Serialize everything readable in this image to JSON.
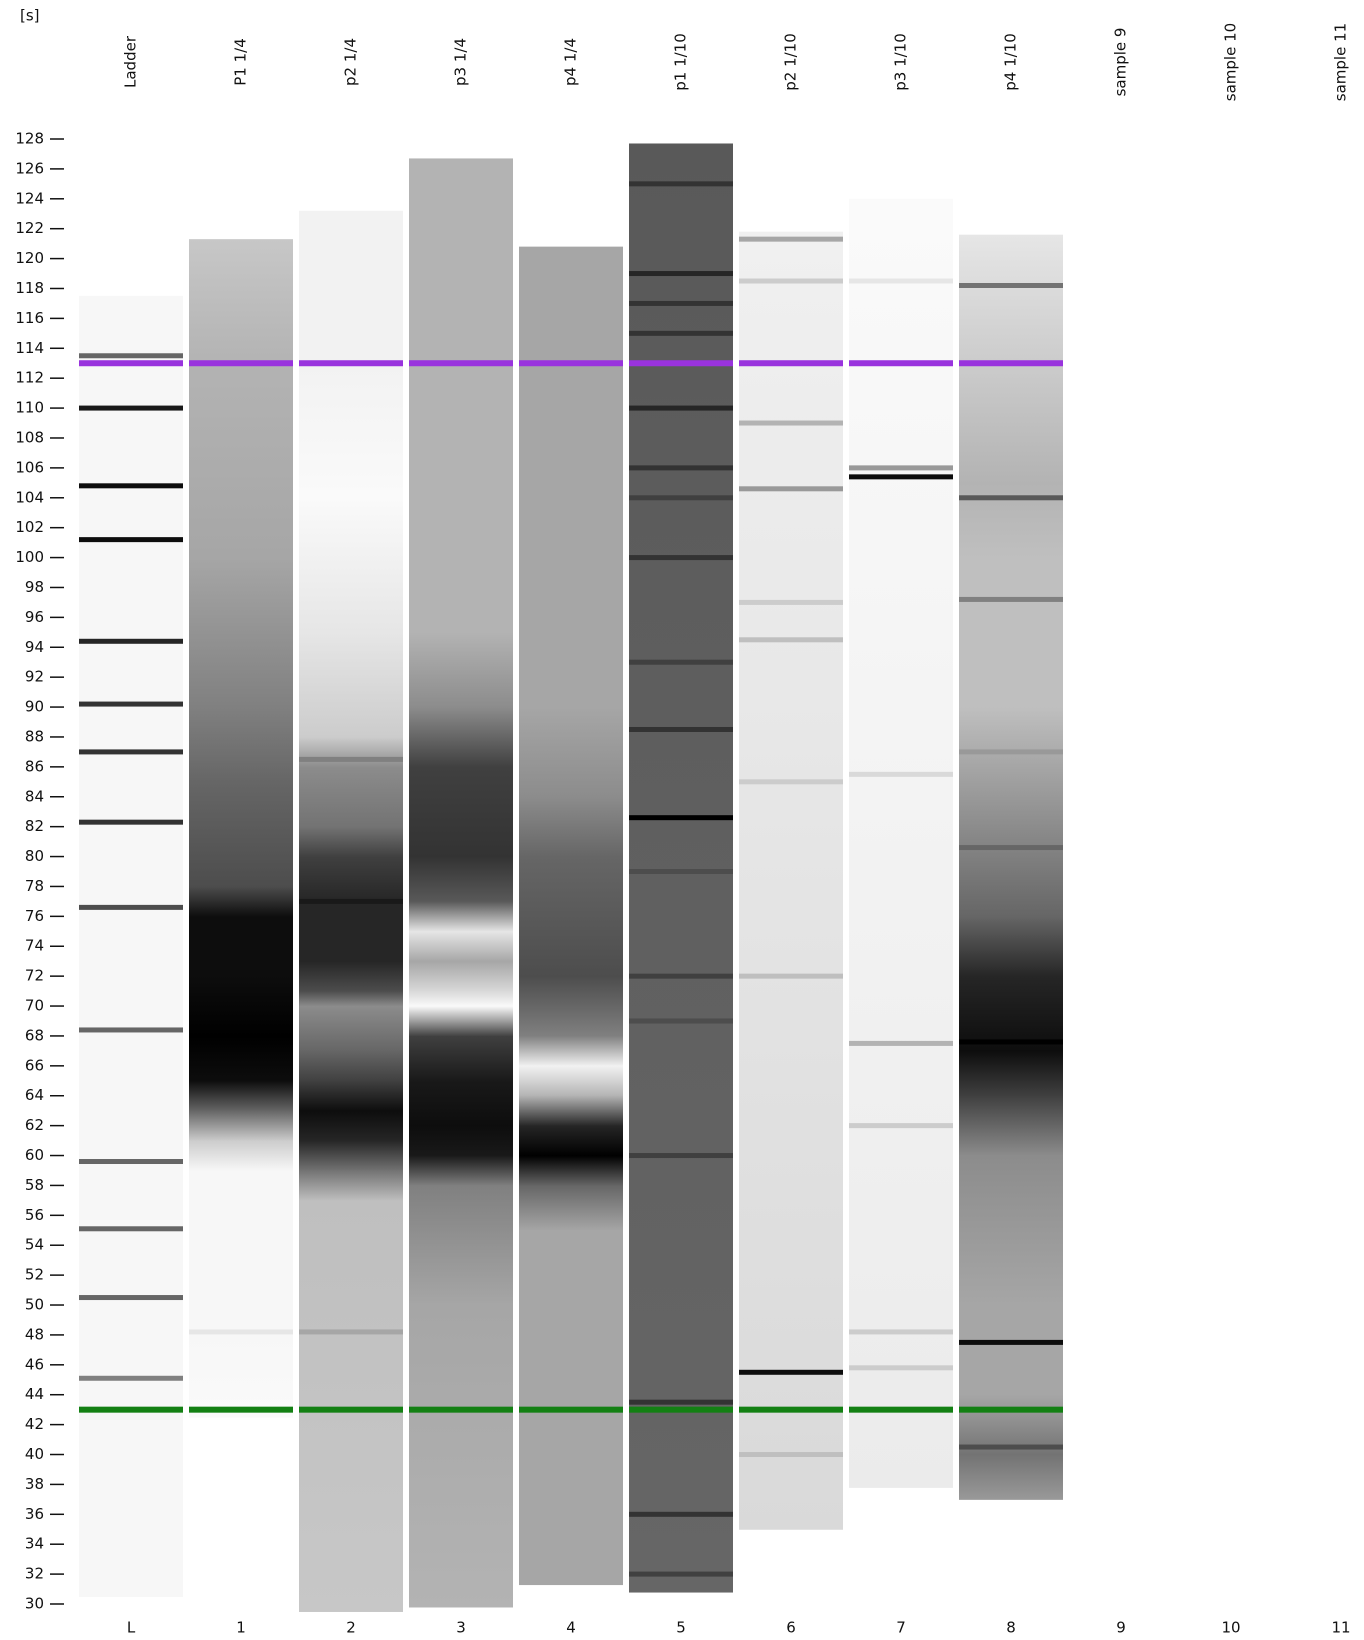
{
  "chart_data": {
    "type": "gel",
    "y_label": "[s]",
    "ylim": [
      30,
      128
    ],
    "yticks": [
      30,
      32,
      34,
      36,
      38,
      40,
      42,
      44,
      46,
      48,
      50,
      52,
      54,
      56,
      58,
      60,
      62,
      64,
      66,
      68,
      70,
      72,
      74,
      76,
      78,
      80,
      82,
      84,
      86,
      88,
      90,
      92,
      94,
      96,
      98,
      100,
      102,
      104,
      106,
      108,
      110,
      112,
      114,
      116,
      118,
      120,
      122,
      124,
      126,
      128
    ],
    "upper_marker": {
      "value": 113,
      "color": "#9933dd"
    },
    "lower_marker": {
      "value": 43,
      "color": "#138013"
    },
    "lanes": [
      {
        "name": "Ladder",
        "number": "L",
        "profile": {
          "positions": [
            117.5,
            30.5
          ],
          "intensities": [
            0.03,
            0.03
          ]
        },
        "bands": {
          "positions": [
            113.5,
            110,
            104.8,
            101.2,
            94.4,
            90.2,
            87,
            82.3,
            76.6,
            68.4,
            59.6,
            55.1,
            50.5,
            45.1
          ],
          "intensities": [
            0.6,
            0.9,
            0.95,
            0.95,
            0.85,
            0.8,
            0.8,
            0.8,
            0.7,
            0.6,
            0.6,
            0.6,
            0.6,
            0.5
          ]
        }
      },
      {
        "name": "P1 1/4",
        "number": 1,
        "profile": {
          "positions": [
            121.3,
            113,
            100,
            90,
            85,
            78,
            76,
            72,
            68,
            65,
            63,
            61,
            59,
            48,
            42.5
          ],
          "intensities": [
            0.22,
            0.3,
            0.35,
            0.5,
            0.6,
            0.7,
            0.95,
            0.95,
            1,
            0.95,
            0.6,
            0.2,
            0.03,
            0.03,
            0.02
          ]
        },
        "bands": {
          "positions": [
            48.2
          ],
          "intensities": [
            0.1
          ]
        }
      },
      {
        "name": "p2 1/4",
        "number": 2,
        "profile": {
          "positions": [
            123.2,
            113,
            104,
            95,
            88,
            86,
            82,
            80,
            77,
            73,
            71,
            70,
            67,
            65,
            63,
            61,
            59,
            57,
            29.5
          ],
          "intensities": [
            0.05,
            0.05,
            0.02,
            0.1,
            0.2,
            0.45,
            0.55,
            0.75,
            0.85,
            0.85,
            0.7,
            0.45,
            0.6,
            0.75,
            0.95,
            0.85,
            0.55,
            0.25,
            0.22
          ]
        },
        "bands": {
          "positions": [
            86.5,
            77,
            48.2
          ],
          "intensities": [
            0.5,
            0.9,
            0.35
          ]
        }
      },
      {
        "name": "p3 1/4",
        "number": 3,
        "profile": {
          "positions": [
            126.7,
            113,
            95,
            90,
            86,
            80,
            77,
            75,
            73,
            71,
            70,
            68,
            65,
            62,
            60,
            58,
            50,
            29.8
          ],
          "intensities": [
            0.3,
            0.3,
            0.3,
            0.45,
            0.75,
            0.8,
            0.65,
            0.1,
            0.35,
            0.15,
            0.02,
            0.75,
            0.9,
            0.95,
            0.9,
            0.5,
            0.35,
            0.3
          ]
        },
        "bands": {
          "positions": [],
          "intensities": []
        }
      },
      {
        "name": "p4 1/4",
        "number": 4,
        "profile": {
          "positions": [
            120.8,
            113,
            100,
            90,
            84,
            80,
            72,
            68,
            66,
            64,
            62,
            60,
            58,
            55,
            43,
            31.3
          ],
          "intensities": [
            0.35,
            0.35,
            0.35,
            0.35,
            0.45,
            0.6,
            0.7,
            0.5,
            0.05,
            0.3,
            0.85,
            1,
            0.6,
            0.35,
            0.35,
            0.35
          ]
        },
        "bands": {
          "positions": [],
          "intensities": []
        }
      },
      {
        "name": "p1 1/10",
        "number": 5,
        "profile": {
          "positions": [
            127.7,
            30.8
          ],
          "intensities": [
            0.65,
            0.6
          ]
        },
        "bands": {
          "positions": [
            125,
            119,
            117,
            115,
            110,
            106,
            104,
            100,
            93,
            88.5,
            82.6,
            79,
            72,
            69,
            60,
            43.5,
            36,
            32
          ],
          "intensities": [
            0.8,
            0.85,
            0.8,
            0.8,
            0.85,
            0.8,
            0.75,
            0.8,
            0.75,
            0.8,
            1,
            0.7,
            0.75,
            0.7,
            0.75,
            0.8,
            0.8,
            0.75
          ]
        }
      },
      {
        "name": "p2 1/10",
        "number": 6,
        "profile": {
          "positions": [
            121.8,
            35
          ],
          "intensities": [
            0.06,
            0.15
          ]
        },
        "bands": {
          "positions": [
            121.3,
            118.5,
            109,
            104.6,
            97,
            94.5,
            85,
            72,
            45.5,
            40
          ],
          "intensities": [
            0.35,
            0.2,
            0.3,
            0.4,
            0.2,
            0.25,
            0.2,
            0.25,
            0.95,
            0.25
          ]
        }
      },
      {
        "name": "p3 1/10",
        "number": 7,
        "profile": {
          "positions": [
            124,
            37.8
          ],
          "intensities": [
            0.02,
            0.08
          ]
        },
        "bands": {
          "positions": [
            118.5,
            106,
            105.4,
            85.5,
            67.5,
            62,
            48.2,
            45.8
          ],
          "intensities": [
            0.1,
            0.4,
            0.95,
            0.15,
            0.3,
            0.2,
            0.2,
            0.2
          ]
        }
      },
      {
        "name": "p4 1/10",
        "number": 8,
        "profile": {
          "positions": [
            121.6,
            105,
            100,
            90,
            82,
            76,
            72,
            67,
            64,
            60,
            50,
            44,
            40,
            37
          ],
          "intensities": [
            0.1,
            0.3,
            0.25,
            0.25,
            0.45,
            0.6,
            0.85,
            0.95,
            0.75,
            0.45,
            0.35,
            0.35,
            0.55,
            0.4
          ]
        },
        "bands": {
          "positions": [
            118.2,
            104,
            97.2,
            87,
            80.6,
            67.6,
            47.5,
            40.5
          ],
          "intensities": [
            0.55,
            0.65,
            0.5,
            0.4,
            0.6,
            1,
            0.95,
            0.7
          ]
        }
      },
      {
        "name": "sample 9",
        "number": 9
      },
      {
        "name": "sample 10",
        "number": 10
      },
      {
        "name": "sample 11",
        "number": 11
      }
    ]
  }
}
